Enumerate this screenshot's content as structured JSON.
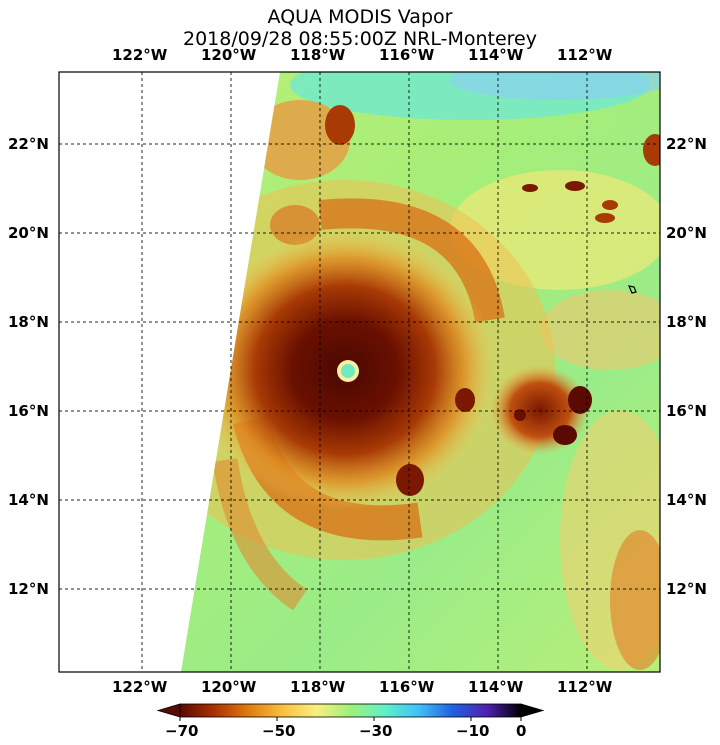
{
  "title": {
    "line1": "AQUA MODIS Vapor",
    "line2": "2018/09/28 08:55:00Z NRL-Monterey"
  },
  "longitude_labels": [
    "122°W",
    "120°W",
    "118°W",
    "116°W",
    "114°W",
    "112°W"
  ],
  "latitude_labels": [
    "22°N",
    "20°N",
    "18°N",
    "16°N",
    "14°N",
    "12°N"
  ],
  "colorbar": {
    "tick_labels": [
      "−70",
      "−50",
      "−30",
      "−10",
      "0"
    ],
    "colors": [
      "#5a0a00",
      "#a83200",
      "#e07a10",
      "#f8c040",
      "#f8f080",
      "#9ef07a",
      "#60f0c8",
      "#40c0f8",
      "#2060e0",
      "#5020b0",
      "#000000"
    ]
  },
  "imagery": {
    "features": [
      "hurricane-eye",
      "spiral-cloud-bands",
      "swath-edge"
    ]
  }
}
